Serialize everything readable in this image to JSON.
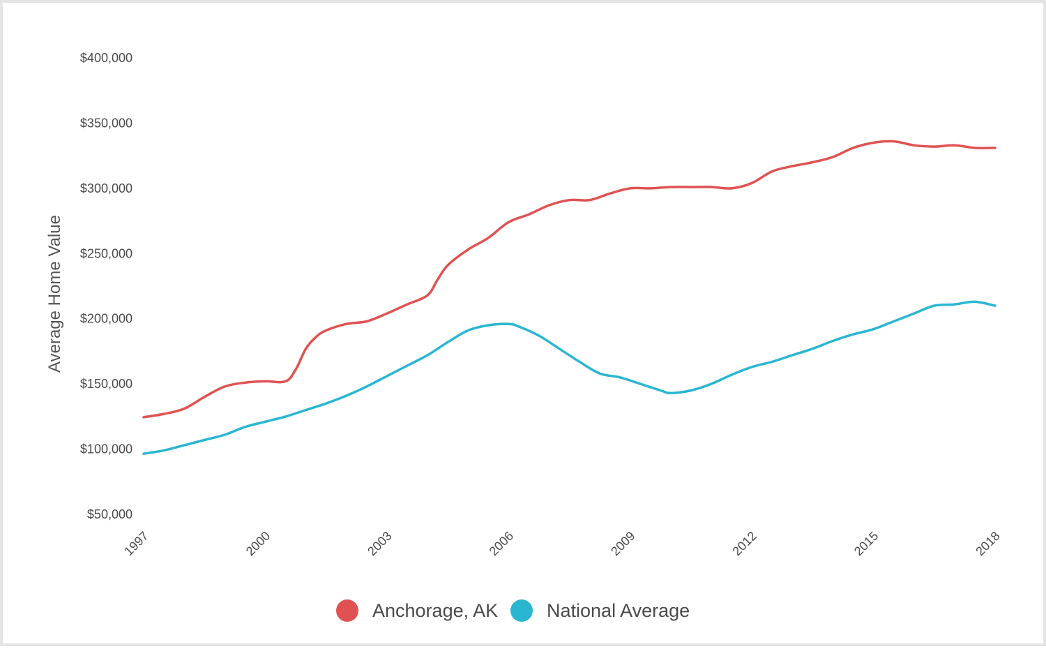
{
  "chart_data": {
    "type": "line",
    "ylabel": "Average Home Value",
    "xlabel": "",
    "title": "",
    "ylim": [
      50000,
      400000
    ],
    "xlim": [
      1997,
      2018
    ],
    "y_ticks": [
      {
        "value": 400000,
        "label": "$400,000"
      },
      {
        "value": 350000,
        "label": "$350,000"
      },
      {
        "value": 300000,
        "label": "$300,000"
      },
      {
        "value": 250000,
        "label": "$250,000"
      },
      {
        "value": 200000,
        "label": "$200,000"
      },
      {
        "value": 150000,
        "label": "$150,000"
      },
      {
        "value": 100000,
        "label": "$100,000"
      },
      {
        "value": 50000,
        "label": "$50,000"
      }
    ],
    "x_ticks": [
      {
        "value": 1997,
        "label": "1997"
      },
      {
        "value": 2000,
        "label": "2000"
      },
      {
        "value": 2003,
        "label": "2003"
      },
      {
        "value": 2006,
        "label": "2006"
      },
      {
        "value": 2009,
        "label": "2009"
      },
      {
        "value": 2012,
        "label": "2012"
      },
      {
        "value": 2015,
        "label": "2015"
      },
      {
        "value": 2018,
        "label": "2018"
      }
    ],
    "grid": false,
    "legend_position": "bottom-center",
    "series": [
      {
        "name": "Anchorage, AK",
        "color": "#e05252",
        "points": [
          [
            1997.0,
            124500
          ],
          [
            1997.5,
            127000
          ],
          [
            1998.0,
            131000
          ],
          [
            1998.5,
            140000
          ],
          [
            1999.0,
            148000
          ],
          [
            1999.5,
            151000
          ],
          [
            2000.0,
            152000
          ],
          [
            2000.5,
            152000
          ],
          [
            2000.75,
            161000
          ],
          [
            2001.0,
            177000
          ],
          [
            2001.25,
            186000
          ],
          [
            2001.5,
            191000
          ],
          [
            2002.0,
            196000
          ],
          [
            2002.5,
            198000
          ],
          [
            2003.0,
            204000
          ],
          [
            2003.5,
            211000
          ],
          [
            2004.0,
            218000
          ],
          [
            2004.25,
            230000
          ],
          [
            2004.5,
            241000
          ],
          [
            2005.0,
            253000
          ],
          [
            2005.5,
            262000
          ],
          [
            2006.0,
            274000
          ],
          [
            2006.5,
            280000
          ],
          [
            2007.0,
            287000
          ],
          [
            2007.5,
            291000
          ],
          [
            2008.0,
            291000
          ],
          [
            2008.5,
            296000
          ],
          [
            2009.0,
            300000
          ],
          [
            2009.5,
            300000
          ],
          [
            2010.0,
            301000
          ],
          [
            2010.5,
            301000
          ],
          [
            2011.0,
            301000
          ],
          [
            2011.5,
            300000
          ],
          [
            2012.0,
            304000
          ],
          [
            2012.5,
            313000
          ],
          [
            2013.0,
            317000
          ],
          [
            2013.5,
            320000
          ],
          [
            2014.0,
            324000
          ],
          [
            2014.5,
            331000
          ],
          [
            2015.0,
            335000
          ],
          [
            2015.5,
            336000
          ],
          [
            2016.0,
            333000
          ],
          [
            2016.5,
            332000
          ],
          [
            2017.0,
            333000
          ],
          [
            2017.5,
            331000
          ],
          [
            2018.0,
            331000
          ]
        ]
      },
      {
        "name": "National Average",
        "color": "#29b6d1",
        "points": [
          [
            1997.0,
            96500
          ],
          [
            1997.5,
            99000
          ],
          [
            1998.0,
            103000
          ],
          [
            1998.5,
            107000
          ],
          [
            1999.0,
            111000
          ],
          [
            1999.5,
            117000
          ],
          [
            2000.0,
            121000
          ],
          [
            2000.5,
            125000
          ],
          [
            2001.0,
            130000
          ],
          [
            2001.5,
            135000
          ],
          [
            2002.0,
            141000
          ],
          [
            2002.5,
            148000
          ],
          [
            2003.0,
            156000
          ],
          [
            2003.5,
            164000
          ],
          [
            2004.0,
            172000
          ],
          [
            2004.5,
            182000
          ],
          [
            2005.0,
            191000
          ],
          [
            2005.5,
            195000
          ],
          [
            2006.0,
            196000
          ],
          [
            2006.25,
            194000
          ],
          [
            2006.75,
            187000
          ],
          [
            2007.25,
            177000
          ],
          [
            2007.75,
            167000
          ],
          [
            2008.25,
            158000
          ],
          [
            2008.75,
            155000
          ],
          [
            2009.25,
            150000
          ],
          [
            2009.75,
            145000
          ],
          [
            2010.0,
            143000
          ],
          [
            2010.5,
            145000
          ],
          [
            2011.0,
            150000
          ],
          [
            2011.5,
            157000
          ],
          [
            2012.0,
            163000
          ],
          [
            2012.5,
            167000
          ],
          [
            2013.0,
            172000
          ],
          [
            2013.5,
            177000
          ],
          [
            2014.0,
            183000
          ],
          [
            2014.5,
            188000
          ],
          [
            2015.0,
            192000
          ],
          [
            2015.5,
            198000
          ],
          [
            2016.0,
            204000
          ],
          [
            2016.5,
            210000
          ],
          [
            2017.0,
            211000
          ],
          [
            2017.5,
            213000
          ],
          [
            2018.0,
            210000
          ]
        ]
      }
    ]
  }
}
